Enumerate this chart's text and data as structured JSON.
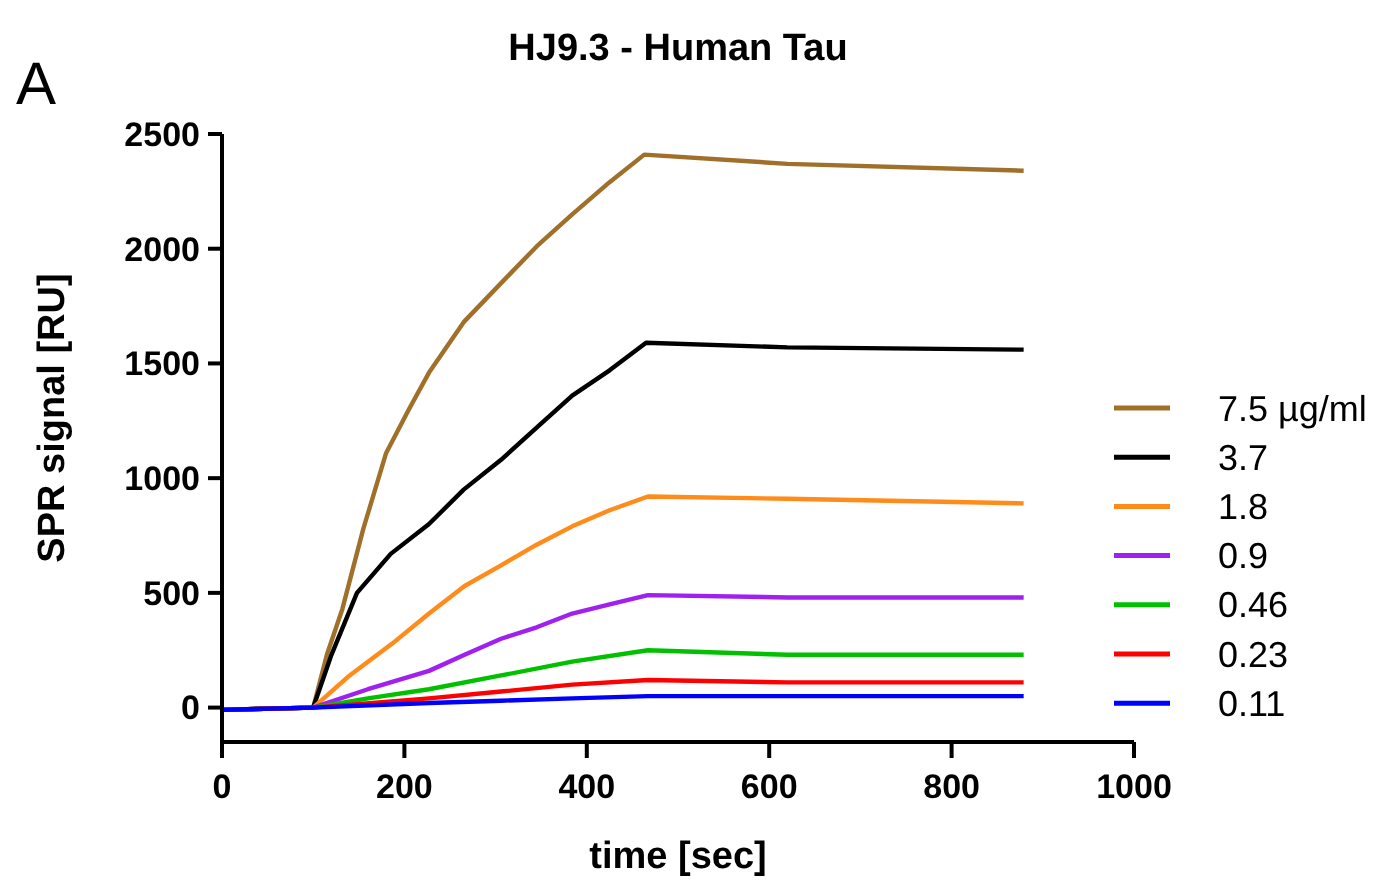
{
  "chart_data": {
    "type": "line",
    "title": "HJ9.3 - Human Tau",
    "xlabel": "time [sec]",
    "ylabel": "SPR signal [RU]",
    "annotations": [
      "A"
    ],
    "xlim": [
      0,
      1000
    ],
    "xticks": [
      0,
      200,
      400,
      600,
      800,
      1000
    ],
    "ylim": [
      -150,
      2500
    ],
    "yticks": [
      0,
      500,
      1000,
      1500,
      2000,
      2500
    ],
    "legend": "right",
    "grid": false,
    "line_style": "solid",
    "series": [
      {
        "name": "7.5 µg/ml",
        "color": "#a0702a",
        "x": [
          0,
          100,
          115,
          132,
          155,
          180,
          205,
          227,
          265,
          306,
          345,
          384,
          425,
          463,
          620,
          879
        ],
        "values": [
          -10,
          0,
          230,
          430,
          780,
          1110,
          1300,
          1460,
          1680,
          1850,
          2010,
          2150,
          2290,
          2410,
          2370,
          2340
        ]
      },
      {
        "name": "3.7",
        "color": "#000000",
        "x": [
          0,
          100,
          120,
          148,
          185,
          227,
          265,
          306,
          345,
          384,
          425,
          465,
          620,
          879
        ],
        "values": [
          -10,
          0,
          230,
          500,
          670,
          800,
          950,
          1080,
          1220,
          1360,
          1470,
          1590,
          1570,
          1560
        ]
      },
      {
        "name": "1.8",
        "color": "#ff8c1a",
        "x": [
          0,
          100,
          140,
          187,
          227,
          266,
          306,
          345,
          384,
          425,
          467,
          620,
          879
        ],
        "values": [
          -10,
          0,
          140,
          280,
          410,
          530,
          620,
          710,
          790,
          860,
          920,
          910,
          890
        ]
      },
      {
        "name": "0.9",
        "color": "#a020f0",
        "x": [
          0,
          100,
          160,
          227,
          266,
          306,
          345,
          384,
          425,
          467,
          620,
          879
        ],
        "values": [
          -10,
          0,
          80,
          160,
          230,
          300,
          350,
          410,
          450,
          490,
          480,
          480
        ]
      },
      {
        "name": "0.46",
        "color": "#00c000",
        "x": [
          0,
          100,
          160,
          227,
          306,
          384,
          467,
          620,
          879
        ],
        "values": [
          -10,
          0,
          40,
          80,
          140,
          200,
          250,
          230,
          230
        ]
      },
      {
        "name": "0.23",
        "color": "#ff0000",
        "x": [
          0,
          100,
          227,
          306,
          384,
          467,
          620,
          879
        ],
        "values": [
          -10,
          0,
          40,
          70,
          100,
          120,
          110,
          110
        ]
      },
      {
        "name": "0.11",
        "color": "#0000ff",
        "x": [
          0,
          100,
          227,
          306,
          384,
          467,
          620,
          879
        ],
        "values": [
          -10,
          0,
          20,
          30,
          40,
          50,
          50,
          50
        ]
      }
    ]
  }
}
